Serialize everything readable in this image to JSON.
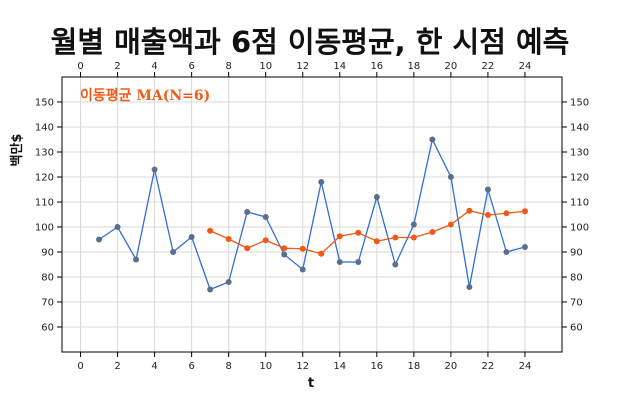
{
  "chart_data": {
    "type": "line",
    "title": "월별 매출액과 6점 이동평균, 한 시점 예측",
    "xlabel": "t",
    "ylabel": "백만$",
    "xlim": [
      -1,
      26
    ],
    "ylim": [
      50,
      160
    ],
    "x_ticks": [
      0,
      2,
      4,
      6,
      8,
      10,
      12,
      14,
      16,
      18,
      20,
      22,
      24
    ],
    "y_ticks": [
      60,
      70,
      80,
      90,
      100,
      110,
      120,
      130,
      140,
      150
    ],
    "grid": true,
    "legend_position": "top-left",
    "series": [
      {
        "key": "sales",
        "color": "#2f6fd6",
        "marker_color": "#5a6f8f",
        "x": [
          1,
          2,
          3,
          4,
          5,
          6,
          7,
          8,
          9,
          10,
          11,
          12,
          13,
          14,
          15,
          16,
          17,
          18,
          19,
          20,
          21,
          22,
          23,
          24
        ],
        "values": [
          95,
          100,
          87,
          123,
          90,
          96,
          75,
          78,
          106,
          104,
          89,
          83,
          118,
          86,
          86,
          112,
          85,
          101,
          135,
          120,
          76,
          115,
          90,
          92
        ]
      },
      {
        "key": "ma",
        "name": "이동평균 MA(N=6)",
        "color": "#f05a16",
        "marker_color": "#f05a16",
        "x": [
          7,
          8,
          9,
          10,
          11,
          12,
          13,
          14,
          15,
          16,
          17,
          18,
          19,
          20,
          21,
          22,
          23,
          24
        ],
        "values": [
          98.5,
          95.2,
          91.5,
          94.7,
          91.5,
          91.3,
          89.3,
          96.3,
          97.7,
          94.3,
          95.8,
          95.8,
          98.0,
          101.0,
          106.5,
          104.8,
          105.5,
          106.3
        ]
      }
    ]
  }
}
